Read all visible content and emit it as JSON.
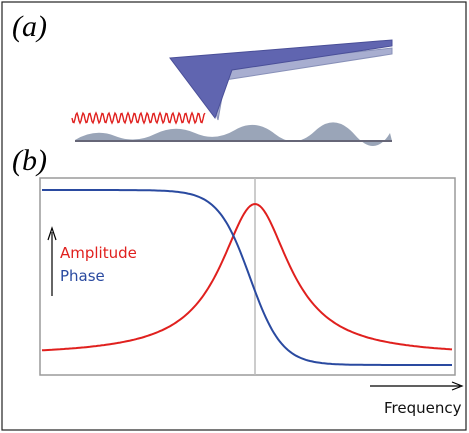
{
  "panels": [
    {
      "label": "(a)"
    },
    {
      "label": "(b)",
      "legend": [
        "Amplitude",
        "Phase"
      ],
      "x_label": "Frequency"
    }
  ]
}
